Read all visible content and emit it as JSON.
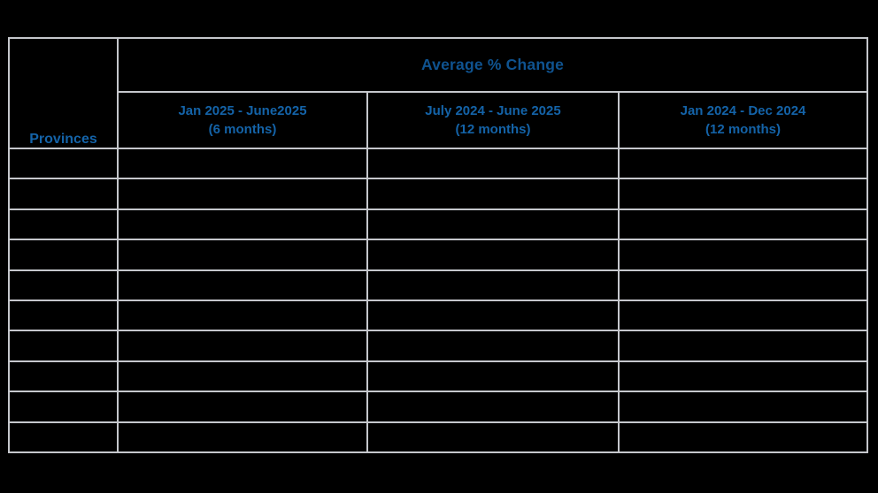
{
  "table": {
    "corner_header": "Provinces",
    "band_header": "Average % Change",
    "column_headers": [
      {
        "line1": "Jan 2025 - June2025",
        "line2": "(6 months)"
      },
      {
        "line1": "July 2024 - June 2025",
        "line2": "(12 months)"
      },
      {
        "line1": "Jan 2024 - Dec 2024",
        "line2": "(12 months)"
      }
    ],
    "rows": [
      {
        "province": "",
        "values": [
          "",
          "",
          ""
        ]
      },
      {
        "province": "",
        "values": [
          "",
          "",
          ""
        ]
      },
      {
        "province": "",
        "values": [
          "",
          "",
          ""
        ]
      },
      {
        "province": "",
        "values": [
          "",
          "",
          ""
        ]
      },
      {
        "province": "",
        "values": [
          "",
          "",
          ""
        ]
      },
      {
        "province": "",
        "values": [
          "",
          "",
          ""
        ]
      },
      {
        "province": "",
        "values": [
          "",
          "",
          ""
        ]
      },
      {
        "province": "",
        "values": [
          "",
          "",
          ""
        ]
      },
      {
        "province": "",
        "values": [
          "",
          "",
          ""
        ]
      },
      {
        "province": "",
        "values": [
          "",
          "",
          ""
        ]
      }
    ],
    "colors": {
      "background": "#000000",
      "band_bg": "#d9e4ee",
      "band_text": "#0f5390",
      "header_text": "#1463a8",
      "gridline": "#c5c7cc",
      "dark_separator": "#2e3744"
    }
  }
}
